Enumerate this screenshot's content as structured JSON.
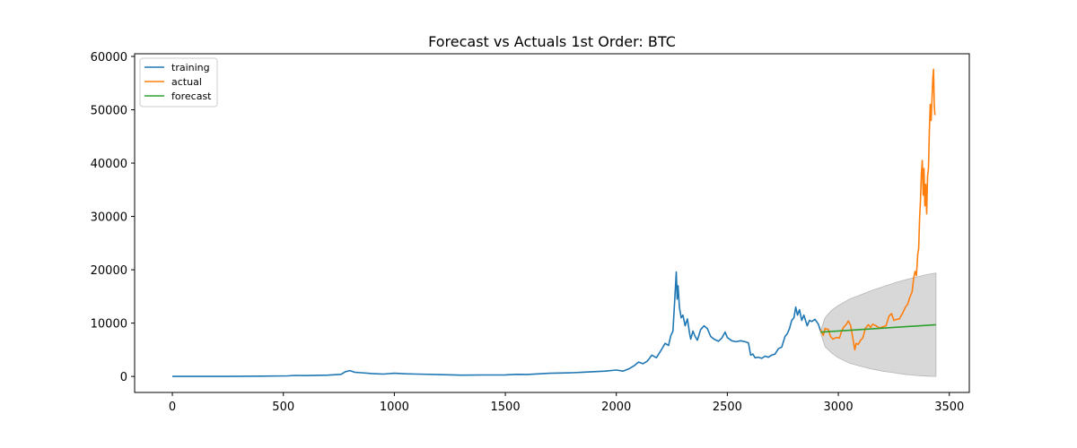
{
  "chart_data": {
    "type": "line",
    "title": "Forecast vs Actuals 1st Order: BTC",
    "xlabel": "",
    "ylabel": "",
    "xlim": [
      -170,
      3590
    ],
    "ylim": [
      -3000,
      60500
    ],
    "x_ticks": [
      0,
      500,
      1000,
      1500,
      2000,
      2500,
      3000,
      3500
    ],
    "y_ticks": [
      0,
      10000,
      20000,
      30000,
      40000,
      50000,
      60000
    ],
    "x_tick_labels": [
      "0",
      "500",
      "1000",
      "1500",
      "2000",
      "2500",
      "3000",
      "3500"
    ],
    "y_tick_labels": [
      "0",
      "10000",
      "20000",
      "30000",
      "40000",
      "50000",
      "60000"
    ],
    "grid": false,
    "legend": {
      "position": "top-left"
    },
    "series": [
      {
        "name": "training",
        "color": "#1f77b4",
        "points": [
          [
            0,
            0
          ],
          [
            200,
            0
          ],
          [
            400,
            50
          ],
          [
            520,
            100
          ],
          [
            550,
            200
          ],
          [
            600,
            150
          ],
          [
            700,
            250
          ],
          [
            760,
            400
          ],
          [
            780,
            900
          ],
          [
            800,
            1100
          ],
          [
            820,
            800
          ],
          [
            850,
            700
          ],
          [
            900,
            550
          ],
          [
            950,
            450
          ],
          [
            1000,
            600
          ],
          [
            1050,
            500
          ],
          [
            1100,
            450
          ],
          [
            1200,
            350
          ],
          [
            1300,
            250
          ],
          [
            1400,
            280
          ],
          [
            1500,
            300
          ],
          [
            1550,
            400
          ],
          [
            1600,
            380
          ],
          [
            1700,
            600
          ],
          [
            1750,
            650
          ],
          [
            1800,
            700
          ],
          [
            1850,
            800
          ],
          [
            1900,
            900
          ],
          [
            1950,
            1000
          ],
          [
            2000,
            1200
          ],
          [
            2030,
            1000
          ],
          [
            2060,
            1500
          ],
          [
            2080,
            2000
          ],
          [
            2100,
            2700
          ],
          [
            2120,
            2400
          ],
          [
            2140,
            2900
          ],
          [
            2160,
            4000
          ],
          [
            2180,
            3500
          ],
          [
            2200,
            4800
          ],
          [
            2220,
            6200
          ],
          [
            2235,
            5800
          ],
          [
            2245,
            7600
          ],
          [
            2255,
            8500
          ],
          [
            2262,
            13500
          ],
          [
            2266,
            16500
          ],
          [
            2270,
            19600
          ],
          [
            2274,
            14500
          ],
          [
            2278,
            17000
          ],
          [
            2284,
            13000
          ],
          [
            2292,
            11000
          ],
          [
            2300,
            11500
          ],
          [
            2310,
            9500
          ],
          [
            2320,
            10800
          ],
          [
            2330,
            8000
          ],
          [
            2335,
            7000
          ],
          [
            2345,
            8500
          ],
          [
            2355,
            7500
          ],
          [
            2365,
            6800
          ],
          [
            2380,
            8800
          ],
          [
            2395,
            9500
          ],
          [
            2410,
            9000
          ],
          [
            2425,
            7500
          ],
          [
            2440,
            7000
          ],
          [
            2460,
            6600
          ],
          [
            2475,
            7200
          ],
          [
            2490,
            8300
          ],
          [
            2500,
            7300
          ],
          [
            2520,
            6700
          ],
          [
            2540,
            6500
          ],
          [
            2560,
            6700
          ],
          [
            2580,
            6500
          ],
          [
            2595,
            6300
          ],
          [
            2605,
            4000
          ],
          [
            2615,
            4200
          ],
          [
            2625,
            3500
          ],
          [
            2640,
            3600
          ],
          [
            2655,
            3400
          ],
          [
            2670,
            3800
          ],
          [
            2685,
            3600
          ],
          [
            2700,
            4000
          ],
          [
            2715,
            4200
          ],
          [
            2730,
            5200
          ],
          [
            2745,
            5500
          ],
          [
            2760,
            7500
          ],
          [
            2770,
            8000
          ],
          [
            2780,
            9000
          ],
          [
            2790,
            10500
          ],
          [
            2800,
            11000
          ],
          [
            2808,
            13000
          ],
          [
            2816,
            11500
          ],
          [
            2825,
            12500
          ],
          [
            2835,
            10500
          ],
          [
            2845,
            11500
          ],
          [
            2860,
            9500
          ],
          [
            2870,
            10500
          ],
          [
            2880,
            10300
          ],
          [
            2895,
            10700
          ],
          [
            2910,
            9800
          ],
          [
            2920,
            8500
          ]
        ]
      },
      {
        "name": "actual",
        "color": "#ff7f0e",
        "points": [
          [
            2920,
            8800
          ],
          [
            2932,
            7700
          ],
          [
            2940,
            9000
          ],
          [
            2955,
            8800
          ],
          [
            2965,
            7500
          ],
          [
            2975,
            7000
          ],
          [
            2990,
            7300
          ],
          [
            3005,
            7200
          ],
          [
            3015,
            8500
          ],
          [
            3025,
            9300
          ],
          [
            3035,
            9700
          ],
          [
            3045,
            10400
          ],
          [
            3055,
            9600
          ],
          [
            3062,
            8000
          ],
          [
            3068,
            6500
          ],
          [
            3074,
            5000
          ],
          [
            3080,
            6200
          ],
          [
            3090,
            6000
          ],
          [
            3100,
            6800
          ],
          [
            3110,
            7200
          ],
          [
            3122,
            9000
          ],
          [
            3135,
            9700
          ],
          [
            3145,
            9200
          ],
          [
            3155,
            9800
          ],
          [
            3170,
            9500
          ],
          [
            3185,
            9100
          ],
          [
            3200,
            9300
          ],
          [
            3215,
            9500
          ],
          [
            3228,
            11300
          ],
          [
            3240,
            11800
          ],
          [
            3250,
            10500
          ],
          [
            3262,
            10700
          ],
          [
            3275,
            10800
          ],
          [
            3290,
            11900
          ],
          [
            3302,
            13000
          ],
          [
            3312,
            13500
          ],
          [
            3322,
            14800
          ],
          [
            3332,
            15800
          ],
          [
            3340,
            18600
          ],
          [
            3346,
            19700
          ],
          [
            3352,
            18900
          ],
          [
            3358,
            23000
          ],
          [
            3362,
            24000
          ],
          [
            3366,
            29500
          ],
          [
            3370,
            33000
          ],
          [
            3374,
            38000
          ],
          [
            3378,
            40500
          ],
          [
            3382,
            34000
          ],
          [
            3386,
            39000
          ],
          [
            3390,
            32000
          ],
          [
            3394,
            36000
          ],
          [
            3398,
            30500
          ],
          [
            3402,
            37500
          ],
          [
            3406,
            39000
          ],
          [
            3410,
            46000
          ],
          [
            3414,
            51000
          ],
          [
            3418,
            48000
          ],
          [
            3422,
            52000
          ],
          [
            3426,
            56000
          ],
          [
            3429,
            57600
          ],
          [
            3432,
            51000
          ],
          [
            3435,
            49000
          ]
        ]
      },
      {
        "name": "forecast",
        "color": "#2ca02c",
        "points": [
          [
            2920,
            8300
          ],
          [
            3440,
            9700
          ]
        ]
      }
    ],
    "confidence_band": {
      "color": "#d6d6d6",
      "x": [
        2920,
        2940,
        2970,
        3000,
        3050,
        3100,
        3150,
        3200,
        3250,
        3300,
        3350,
        3400,
        3440
      ],
      "upper": [
        8400,
        11000,
        12400,
        13300,
        14500,
        15300,
        16100,
        16800,
        17500,
        18100,
        18600,
        19100,
        19400
      ],
      "lower": [
        8200,
        5600,
        4400,
        3500,
        2500,
        1900,
        1400,
        1000,
        700,
        400,
        200,
        50,
        0
      ]
    }
  }
}
